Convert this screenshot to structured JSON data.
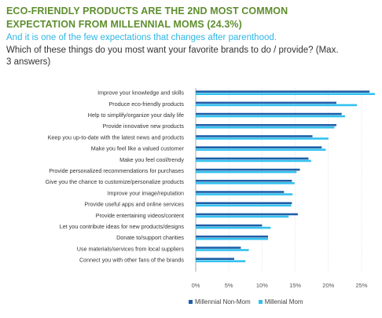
{
  "title": "ECO-FRIENDLY PRODUCTS ARE THE 2ND MOST COMMON EXPECTATION FROM MILLENNIAL MOMS (24.3%)",
  "subtitle": "And it is one of the few expectations that changes after parenthood.",
  "question": "Which of these things do you most want your favorite brands to do / provide? (Max. 3 answers)",
  "colors": {
    "non_mom": "#1f5fa8",
    "mom": "#33c1ee",
    "title": "#5e8e2e"
  },
  "chart_data": {
    "type": "bar",
    "orientation": "horizontal",
    "categories": [
      "Improve your knowledge and skills",
      "Produce eco-friendly products",
      "Help to simplify/organize your daily life",
      "Provide innovative new products",
      "Keep you up-to-date with the latest news and products",
      "Make you feel like a valued customer",
      "Make you feel cool/trendy",
      "Provide personalized recommendations for purchases",
      "Give you the chance to customize/personalize products",
      "Improve your image/reputation",
      "Provide useful apps and online services",
      "Provide entertaining videos/content",
      "Let you contribute ideas for new products/designs",
      "Donate to/support charities",
      "Use materials/services from local suppliers",
      "Connect you with other fans of the brands"
    ],
    "series": [
      {
        "name": "Millennial Non-Mom",
        "values": [
          26.2,
          21.2,
          22.0,
          21.2,
          17.6,
          19.0,
          17.0,
          15.7,
          14.5,
          13.3,
          14.5,
          15.4,
          10.0,
          10.9,
          6.8,
          5.8
        ]
      },
      {
        "name": "Millenial Mom",
        "values": [
          27.0,
          24.3,
          22.5,
          20.9,
          20.0,
          19.6,
          17.4,
          15.2,
          14.9,
          14.6,
          14.4,
          14.0,
          11.3,
          10.9,
          8.0,
          7.5
        ]
      }
    ],
    "xticks": [
      "0%",
      "5%",
      "10%",
      "15%",
      "20%",
      "25%"
    ],
    "xlim": [
      0,
      27.5
    ],
    "grid": true,
    "legend_position": "bottom"
  }
}
